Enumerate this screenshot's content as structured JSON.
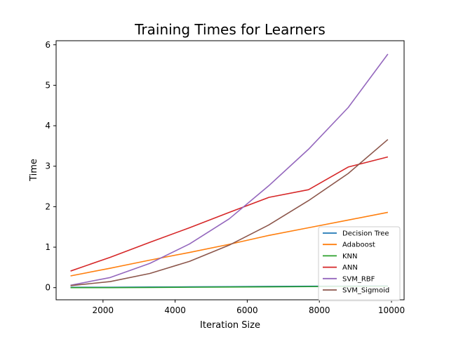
{
  "chart_data": {
    "type": "line",
    "title": "Training Times for Learners",
    "xlabel": "Iteration Size",
    "ylabel": "Time",
    "xlim": [
      700,
      10350
    ],
    "ylim": [
      -0.3,
      6.1
    ],
    "xticks": [
      2000,
      4000,
      6000,
      8000,
      10000
    ],
    "yticks": [
      0,
      1,
      2,
      3,
      4,
      5,
      6
    ],
    "grid": false,
    "legend_position": "lower-right",
    "x": [
      1100,
      2200,
      3300,
      4400,
      5500,
      6600,
      7700,
      8800,
      9900
    ],
    "series": [
      {
        "name": "Decision Tree",
        "color": "#1f77b4",
        "values": [
          0.01,
          0.01,
          0.015,
          0.02,
          0.025,
          0.03,
          0.035,
          0.04,
          0.045
        ]
      },
      {
        "name": "Adaboost",
        "color": "#ff7f0e",
        "values": [
          0.29,
          0.48,
          0.68,
          0.87,
          1.07,
          1.29,
          1.48,
          1.67,
          1.86
        ]
      },
      {
        "name": "KNN",
        "color": "#2ca02c",
        "values": [
          0.0,
          0.0,
          0.005,
          0.01,
          0.015,
          0.02,
          0.025,
          0.03,
          0.035
        ]
      },
      {
        "name": "ANN",
        "color": "#d62728",
        "values": [
          0.41,
          0.75,
          1.12,
          1.48,
          1.86,
          2.23,
          2.42,
          2.98,
          3.23
        ]
      },
      {
        "name": "SVM_RBF",
        "color": "#9467bd",
        "values": [
          0.06,
          0.25,
          0.6,
          1.08,
          1.7,
          2.52,
          3.42,
          4.45,
          5.77
        ]
      },
      {
        "name": "SVM_Sigmoid",
        "color": "#8c564b",
        "values": [
          0.05,
          0.15,
          0.35,
          0.65,
          1.05,
          1.55,
          2.15,
          2.82,
          3.66
        ]
      }
    ]
  }
}
